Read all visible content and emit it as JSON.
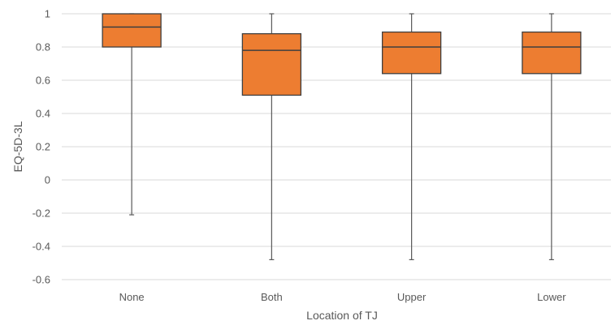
{
  "chart_data": {
    "type": "boxplot",
    "title": "",
    "xlabel": "Location of TJ",
    "ylabel": "EQ-5D-3L",
    "ylim": [
      -0.6,
      1.0
    ],
    "yticks": [
      -0.6,
      -0.4,
      -0.2,
      0,
      0.2,
      0.4,
      0.6,
      0.8,
      1.0
    ],
    "ytick_labels": [
      "-0.6",
      "-0.4",
      "-0.2",
      "0",
      "0.2",
      "0.4",
      "0.6",
      "0.8",
      "1"
    ],
    "grid": true,
    "categories": [
      "None",
      "Both",
      "Upper",
      "Lower"
    ],
    "boxes": [
      {
        "category": "None",
        "min": -0.21,
        "q1": 0.8,
        "median": 0.92,
        "q3": 1.0,
        "max": 1.0
      },
      {
        "category": "Both",
        "min": -0.48,
        "q1": 0.51,
        "median": 0.78,
        "q3": 0.88,
        "max": 1.0
      },
      {
        "category": "Upper",
        "min": -0.48,
        "q1": 0.64,
        "median": 0.8,
        "q3": 0.89,
        "max": 1.0
      },
      {
        "category": "Lower",
        "min": -0.48,
        "q1": 0.64,
        "median": 0.8,
        "q3": 0.89,
        "max": 1.0
      }
    ],
    "colors": {
      "box_fill": "#ED7D31",
      "box_stroke": "#3F3F3F",
      "whisker": "#595959",
      "grid": "#D9D9D9"
    }
  }
}
